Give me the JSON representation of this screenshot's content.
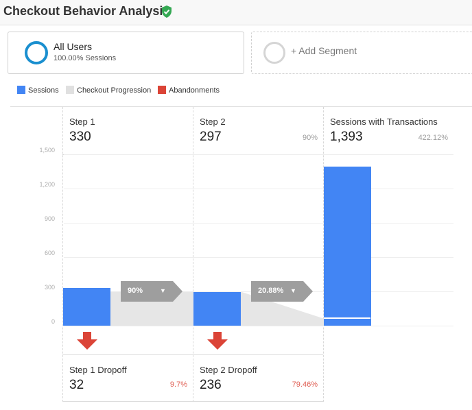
{
  "header": {
    "title": "Checkout Behavior Analysis",
    "verified_icon": "verified-shield-icon",
    "icon_color": "#34a853"
  },
  "segments": {
    "active": {
      "name": "All Users",
      "sub": "100.00% Sessions",
      "ring_color": "#1a8fcf"
    },
    "add_label": "+ Add Segment"
  },
  "legend": [
    {
      "label": "Sessions",
      "color": "#4285f4"
    },
    {
      "label": "Checkout Progression",
      "color": "#e0e0e0"
    },
    {
      "label": "Abandonments",
      "color": "#db4437"
    }
  ],
  "steps": [
    {
      "title": "Step 1",
      "value": "330",
      "pct": ""
    },
    {
      "title": "Step 2",
      "value": "297",
      "pct": "90%"
    },
    {
      "title": "Sessions with Transactions",
      "value": "1,393",
      "pct": "422.12%"
    }
  ],
  "chart_data": {
    "type": "bar",
    "categories": [
      "Step 1",
      "Step 2",
      "Sessions with Transactions"
    ],
    "values": [
      330,
      297,
      1393
    ],
    "ylim": [
      0,
      1500
    ],
    "yticks": [
      "0",
      "300",
      "600",
      "900",
      "1,200",
      "1,500"
    ],
    "progression_labels": [
      "90%",
      "20.88%"
    ]
  },
  "dropoffs": [
    {
      "title": "Step 1 Dropoff",
      "value": "32",
      "pct": "9.7%"
    },
    {
      "title": "Step 2 Dropoff",
      "value": "236",
      "pct": "79.46%"
    }
  ]
}
